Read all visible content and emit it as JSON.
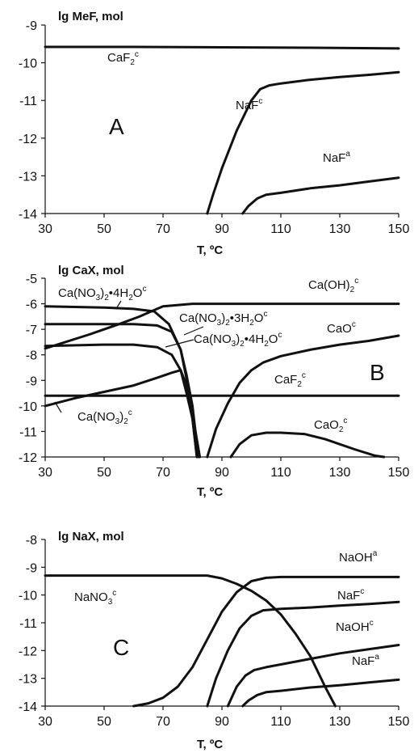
{
  "chart_data": [
    {
      "type": "line",
      "panel_letter": "A",
      "ylabel": "lg MeF, mol",
      "xlabel": "T, ºC",
      "xlim": [
        30,
        150
      ],
      "ylim": [
        -14,
        -9
      ],
      "xticks": [
        "30",
        "50",
        "70",
        "90",
        "110",
        "130",
        "150"
      ],
      "yticks": [
        "-9",
        "-10",
        "-11",
        "-12",
        "-13",
        "-14"
      ],
      "series": [
        {
          "name": "CaF2c",
          "x": [
            30,
            60,
            90,
            120,
            150
          ],
          "y": [
            -9.58,
            -9.58,
            -9.59,
            -9.6,
            -9.62
          ]
        },
        {
          "name": "NaFc",
          "x": [
            85,
            87,
            90,
            95,
            100,
            103,
            106,
            110,
            120,
            130,
            140,
            150
          ],
          "y": [
            -14,
            -13.5,
            -12.8,
            -11.8,
            -11.0,
            -10.7,
            -10.6,
            -10.55,
            -10.45,
            -10.38,
            -10.32,
            -10.25
          ]
        },
        {
          "name": "NaFa",
          "x": [
            97,
            99,
            102,
            105,
            110,
            120,
            130,
            140,
            150
          ],
          "y": [
            -14,
            -13.8,
            -13.6,
            -13.5,
            -13.45,
            -13.33,
            -13.25,
            -13.15,
            -13.05
          ]
        }
      ],
      "annotations": [
        {
          "id": "lbl-caf2",
          "base": "CaF",
          "sub": "2",
          "sup": "c"
        },
        {
          "id": "lbl-naf-c",
          "base": "NaF",
          "sub": "",
          "sup": "c"
        },
        {
          "id": "lbl-naf-a",
          "base": "NaF",
          "sub": "",
          "sup": "a"
        }
      ]
    },
    {
      "type": "line",
      "panel_letter": "B",
      "ylabel": "lg CaX, mol",
      "xlabel": "T, ºC",
      "xlim": [
        30,
        150
      ],
      "ylim": [
        -12,
        -5
      ],
      "xticks": [
        "30",
        "50",
        "70",
        "90",
        "110",
        "130",
        "150"
      ],
      "yticks": [
        "-5",
        "-6",
        "-7",
        "-8",
        "-9",
        "-10",
        "-11",
        "-12"
      ],
      "series": [
        {
          "name": "Ca(NO3)2•4H2Oc (upper)",
          "x": [
            30,
            50,
            60,
            67,
            72,
            76,
            79,
            81,
            82.5
          ],
          "y": [
            -6.1,
            -6.15,
            -6.2,
            -6.3,
            -6.8,
            -7.8,
            -9.5,
            -11,
            -12
          ]
        },
        {
          "name": "Ca(NO3)2•3H2Oc",
          "x": [
            30,
            50,
            60,
            68,
            73,
            76,
            78,
            80,
            82
          ],
          "y": [
            -6.8,
            -6.8,
            -6.8,
            -6.85,
            -7.1,
            -7.8,
            -8.8,
            -10,
            -12
          ]
        },
        {
          "name": "Ca(NO3)2•4H2Oc (lower)",
          "x": [
            30,
            50,
            60,
            68,
            73,
            76,
            78,
            80,
            81.5
          ],
          "y": [
            -7.65,
            -7.6,
            -7.6,
            -7.7,
            -8.0,
            -8.6,
            -9.5,
            -10.5,
            -12
          ]
        },
        {
          "name": "Ca(NO3)2c",
          "x": [
            30,
            40,
            50,
            60,
            68,
            73,
            76,
            78,
            80,
            81.5
          ],
          "y": [
            -10.0,
            -9.7,
            -9.45,
            -9.2,
            -8.9,
            -8.7,
            -8.6,
            -9.2,
            -10.5,
            -12
          ]
        },
        {
          "name": "Ca(OH)2c",
          "x": [
            30,
            45,
            55,
            62,
            66,
            70,
            80,
            90,
            110,
            130,
            150
          ],
          "y": [
            -7.75,
            -7.2,
            -6.8,
            -6.5,
            -6.3,
            -6.1,
            -6.0,
            -6.0,
            -6.0,
            -6.0,
            -6.0
          ]
        },
        {
          "name": "CaF2c",
          "x": [
            30,
            60,
            90,
            120,
            150
          ],
          "y": [
            -9.6,
            -9.6,
            -9.6,
            -9.6,
            -9.6
          ]
        },
        {
          "name": "CaOc",
          "x": [
            85,
            88,
            92,
            96,
            100,
            104,
            110,
            120,
            130,
            140,
            150
          ],
          "y": [
            -12,
            -10.9,
            -9.9,
            -9.1,
            -8.6,
            -8.3,
            -8.05,
            -7.8,
            -7.6,
            -7.45,
            -7.25
          ]
        },
        {
          "name": "CaO2c",
          "x": [
            93,
            96,
            100,
            105,
            110,
            118,
            125,
            135,
            142,
            145
          ],
          "y": [
            -12,
            -11.5,
            -11.15,
            -11.05,
            -11.05,
            -11.1,
            -11.3,
            -11.7,
            -11.95,
            -12
          ]
        }
      ],
      "annotations": [
        {
          "id": "lbl-cano3-4h2o-top",
          "text": "Ca(NO3)2•4H2Oc"
        },
        {
          "id": "lbl-caoh2",
          "text": "Ca(OH)2c"
        },
        {
          "id": "lbl-cano3-3h2o",
          "text": "Ca(NO3)2•3H2Oc"
        },
        {
          "id": "lbl-cano3-4h2o-mid",
          "text": "Ca(NO3)2•4H2Oc"
        },
        {
          "id": "lbl-cao",
          "text": "CaOc"
        },
        {
          "id": "lbl-caf2-b",
          "text": "CaF2c"
        },
        {
          "id": "lbl-cano3",
          "text": "Ca(NO3)2c"
        },
        {
          "id": "lbl-cao2",
          "text": "CaO2c"
        }
      ]
    },
    {
      "type": "line",
      "panel_letter": "C",
      "ylabel": "lg NaX, mol",
      "xlabel": "T, ºC",
      "xlim": [
        30,
        150
      ],
      "ylim": [
        -14,
        -8
      ],
      "xticks": [
        "30",
        "50",
        "70",
        "90",
        "110",
        "130",
        "150"
      ],
      "yticks": [
        "-8",
        "-9",
        "-10",
        "-11",
        "-12",
        "-13",
        "-14"
      ],
      "series": [
        {
          "name": "NaNO3c",
          "x": [
            30,
            50,
            70,
            85,
            90,
            95,
            100,
            105,
            110,
            115,
            120,
            125,
            128.5
          ],
          "y": [
            -9.3,
            -9.3,
            -9.3,
            -9.3,
            -9.4,
            -9.6,
            -9.85,
            -10.2,
            -10.7,
            -11.4,
            -12.2,
            -13.3,
            -14
          ]
        },
        {
          "name": "NaOHa",
          "x": [
            60,
            65,
            70,
            75,
            80,
            85,
            90,
            95,
            100,
            105,
            110,
            130,
            150
          ],
          "y": [
            -14,
            -13.9,
            -13.7,
            -13.3,
            -12.6,
            -11.6,
            -10.6,
            -9.9,
            -9.5,
            -9.38,
            -9.35,
            -9.35,
            -9.35
          ]
        },
        {
          "name": "NaFc",
          "x": [
            85,
            88,
            92,
            96,
            100,
            104,
            110,
            120,
            130,
            140,
            150
          ],
          "y": [
            -14,
            -13.0,
            -12.0,
            -11.2,
            -10.75,
            -10.55,
            -10.5,
            -10.45,
            -10.38,
            -10.32,
            -10.25
          ]
        },
        {
          "name": "NaOHc",
          "x": [
            92,
            95,
            98,
            101,
            105,
            110,
            120,
            130,
            140,
            150
          ],
          "y": [
            -14,
            -13.3,
            -12.9,
            -12.7,
            -12.6,
            -12.5,
            -12.3,
            -12.1,
            -11.95,
            -11.8
          ]
        },
        {
          "name": "NaFa",
          "x": [
            97,
            99,
            102,
            105,
            110,
            120,
            130,
            140,
            150
          ],
          "y": [
            -14,
            -13.8,
            -13.6,
            -13.5,
            -13.45,
            -13.33,
            -13.25,
            -13.15,
            -13.05
          ]
        }
      ],
      "annotations": [
        {
          "id": "lbl-nano3",
          "text": "NaNO3c"
        },
        {
          "id": "lbl-naoh-a",
          "text": "NaOHa"
        },
        {
          "id": "lbl-naf-c-c",
          "text": "NaFc"
        },
        {
          "id": "lbl-naoh-c",
          "text": "NaOHc"
        },
        {
          "id": "lbl-naf-a-c",
          "text": "NaFa"
        }
      ]
    }
  ]
}
